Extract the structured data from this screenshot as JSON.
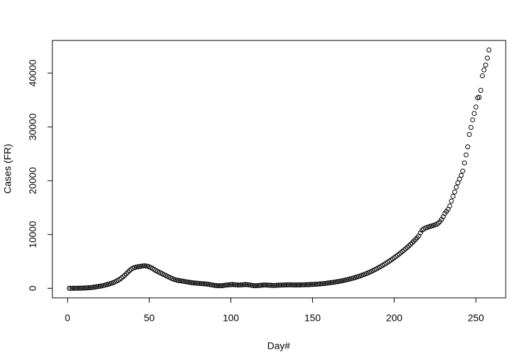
{
  "chart_data": {
    "type": "scatter",
    "x_label": "Day#",
    "y_label": "Cases (FR)",
    "xlim": [
      -9.28,
      268.28
    ],
    "ylim": [
      -1772,
      46072
    ],
    "xticks": [
      0,
      50,
      100,
      150,
      200,
      250
    ],
    "yticks": [
      0,
      10000,
      20000,
      30000,
      40000
    ],
    "color": "#000000",
    "x": [
      1,
      2,
      3,
      4,
      5,
      6,
      7,
      8,
      9,
      10,
      11,
      12,
      13,
      14,
      15,
      16,
      17,
      18,
      19,
      20,
      21,
      22,
      23,
      24,
      25,
      26,
      27,
      28,
      29,
      30,
      31,
      32,
      33,
      34,
      35,
      36,
      37,
      38,
      39,
      40,
      41,
      42,
      43,
      44,
      45,
      46,
      47,
      48,
      49,
      50,
      51,
      52,
      53,
      54,
      55,
      56,
      57,
      58,
      59,
      60,
      61,
      62,
      63,
      64,
      65,
      66,
      67,
      68,
      69,
      70,
      71,
      72,
      73,
      74,
      75,
      76,
      77,
      78,
      79,
      80,
      81,
      82,
      83,
      84,
      85,
      86,
      87,
      88,
      89,
      90,
      91,
      92,
      93,
      94,
      95,
      96,
      97,
      98,
      99,
      100,
      101,
      102,
      103,
      104,
      105,
      106,
      107,
      108,
      109,
      110,
      111,
      112,
      113,
      114,
      115,
      116,
      117,
      118,
      119,
      120,
      121,
      122,
      123,
      124,
      125,
      126,
      127,
      128,
      129,
      130,
      131,
      132,
      133,
      134,
      135,
      136,
      137,
      138,
      139,
      140,
      141,
      142,
      143,
      144,
      145,
      146,
      147,
      148,
      149,
      150,
      151,
      152,
      153,
      154,
      155,
      156,
      157,
      158,
      159,
      160,
      161,
      162,
      163,
      164,
      165,
      166,
      167,
      168,
      169,
      170,
      171,
      172,
      173,
      174,
      175,
      176,
      177,
      178,
      179,
      180,
      181,
      182,
      183,
      184,
      185,
      186,
      187,
      188,
      189,
      190,
      191,
      192,
      193,
      194,
      195,
      196,
      197,
      198,
      199,
      200,
      201,
      202,
      203,
      204,
      205,
      206,
      207,
      208,
      209,
      210,
      211,
      212,
      213,
      214,
      215,
      216,
      217,
      218,
      219,
      220,
      221,
      222,
      223,
      224,
      225,
      226,
      227,
      228,
      229,
      230,
      231,
      232,
      233,
      234,
      235,
      236,
      237,
      238,
      239,
      240,
      241,
      242,
      243,
      244,
      245,
      246,
      247,
      248,
      249,
      250,
      251,
      252,
      253,
      254,
      255,
      256,
      257,
      258
    ],
    "values": [
      0,
      0,
      5,
      10,
      10,
      15,
      20,
      30,
      40,
      50,
      60,
      80,
      100,
      130,
      160,
      200,
      250,
      300,
      350,
      400,
      450,
      520,
      600,
      680,
      760,
      850,
      950,
      1050,
      1200,
      1350,
      1500,
      1700,
      1900,
      2150,
      2400,
      2700,
      3000,
      3300,
      3550,
      3750,
      3850,
      3950,
      4000,
      4050,
      4100,
      4150,
      4200,
      4150,
      4100,
      4000,
      3850,
      3700,
      3500,
      3300,
      3150,
      3000,
      2850,
      2700,
      2550,
      2400,
      2250,
      2100,
      1950,
      1800,
      1700,
      1600,
      1500,
      1450,
      1400,
      1350,
      1300,
      1250,
      1200,
      1150,
      1100,
      1050,
      1000,
      980,
      950,
      920,
      900,
      870,
      850,
      820,
      800,
      750,
      700,
      650,
      600,
      550,
      500,
      480,
      470,
      480,
      500,
      550,
      600,
      620,
      650,
      680,
      700,
      680,
      650,
      620,
      600,
      620,
      650,
      680,
      700,
      680,
      650,
      600,
      550,
      500,
      480,
      500,
      520,
      550,
      580,
      600,
      620,
      600,
      580,
      560,
      540,
      520,
      530,
      550,
      570,
      590,
      600,
      610,
      620,
      630,
      640,
      650,
      640,
      630,
      620,
      610,
      620,
      630,
      640,
      650,
      660,
      670,
      680,
      690,
      700,
      720,
      740,
      760,
      780,
      800,
      830,
      860,
      890,
      920,
      960,
      1000,
      1040,
      1080,
      1120,
      1170,
      1220,
      1270,
      1330,
      1390,
      1450,
      1520,
      1590,
      1660,
      1740,
      1820,
      1900,
      1990,
      2080,
      2180,
      2280,
      2390,
      2500,
      2620,
      2740,
      2870,
      3000,
      3140,
      3290,
      3440,
      3600,
      3760,
      3930,
      4100,
      4280,
      4460,
      4650,
      4850,
      5050,
      5250,
      5460,
      5680,
      5900,
      6130,
      6360,
      6600,
      6850,
      7100,
      7360,
      7620,
      7890,
      8170,
      8460,
      8760,
      9070,
      9390,
      9720,
      10300,
      10800,
      11000,
      11200,
      11300,
      11400,
      11500,
      11600,
      11700,
      11800,
      11900,
      12100,
      12400,
      12800,
      13300,
      13900,
      14300,
      14700,
      15300,
      16200,
      17100,
      17900,
      18800,
      19600,
      20300,
      21000,
      21800,
      23300,
      24800,
      26300,
      28600,
      29900,
      31300,
      32500,
      33700,
      35400,
      35500,
      36800,
      39500,
      40600,
      41500,
      42800,
      44300
    ]
  }
}
